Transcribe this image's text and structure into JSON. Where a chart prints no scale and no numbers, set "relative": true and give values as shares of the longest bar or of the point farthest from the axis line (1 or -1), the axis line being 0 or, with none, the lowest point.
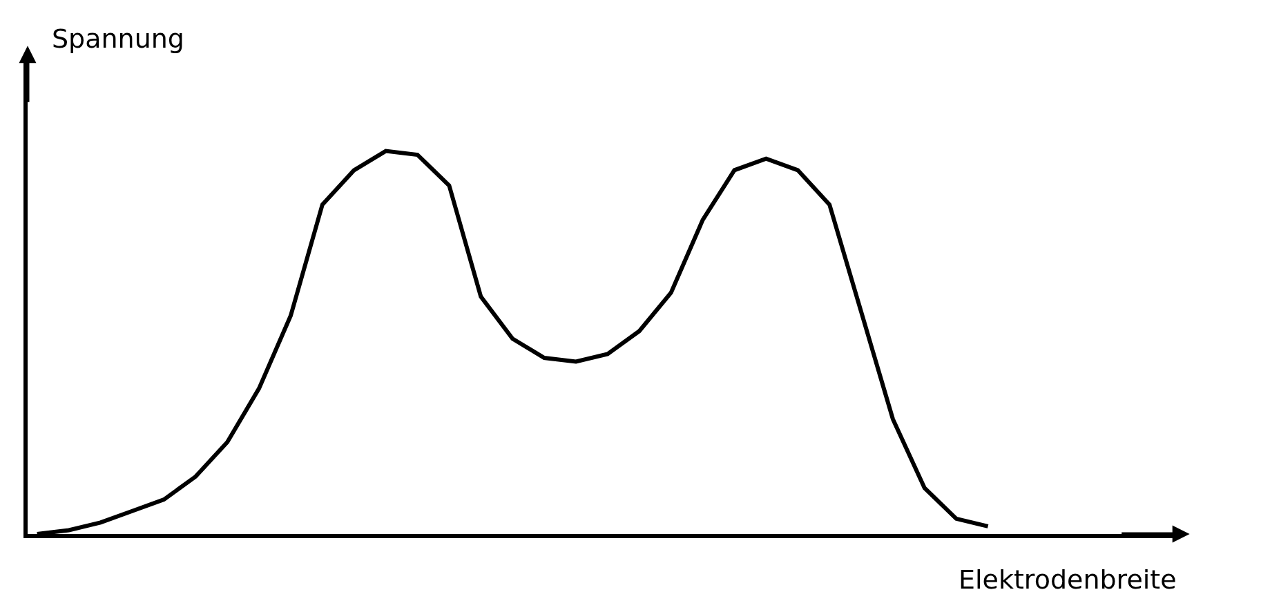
{
  "chart_data": {
    "type": "line",
    "xlabel": "Elektrodenbreite",
    "ylabel": "Spannung",
    "relative": true,
    "categories": [
      null,
      null,
      null,
      null,
      null,
      null,
      null,
      null,
      null,
      null,
      null,
      null,
      null,
      null,
      null,
      null,
      null,
      null,
      null,
      null,
      null,
      null,
      null,
      null,
      null,
      null,
      null,
      null,
      null,
      null,
      null
    ],
    "series": [
      {
        "color": "#000000",
        "values": [
          0,
          0.01,
          0.03,
          0.06,
          0.09,
          0.15,
          0.24,
          0.38,
          0.57,
          0.86,
          0.95,
          1.0,
          0.99,
          0.91,
          0.62,
          0.51,
          0.46,
          0.45,
          0.47,
          0.53,
          0.63,
          0.82,
          0.95,
          0.98,
          0.95,
          0.86,
          0.58,
          0.3,
          0.12,
          0.04,
          0.02
        ]
      }
    ],
    "marker": "none",
    "line_style": "solid",
    "grid": false
  }
}
